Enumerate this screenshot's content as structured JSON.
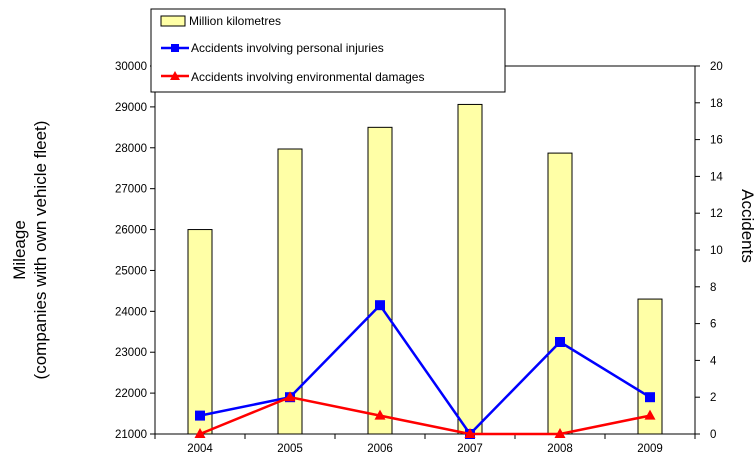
{
  "chart_data": {
    "type": "bar",
    "categories": [
      "2004",
      "2005",
      "2006",
      "2007",
      "2008",
      "2009"
    ],
    "y_left": {
      "ticks": [
        "21000",
        "22000",
        "23000",
        "24000",
        "25000",
        "26000",
        "27000",
        "28000",
        "29000",
        "30000"
      ],
      "range": [
        21000,
        30000
      ]
    },
    "y_right": {
      "ticks": [
        "0",
        "2",
        "4",
        "6",
        "8",
        "10",
        "12",
        "14",
        "16",
        "18",
        "20"
      ],
      "range": [
        0,
        20
      ]
    },
    "series": [
      {
        "name": "Million kilometres",
        "type": "bar",
        "axis": "left",
        "color": "#FFFFA6",
        "values": [
          26000,
          27970,
          28500,
          29060,
          27870,
          24300
        ]
      },
      {
        "name": "Accidents involving personal injuries",
        "type": "line",
        "axis": "right",
        "color": "#0000FF",
        "marker": "square",
        "values": [
          1,
          2,
          7,
          0,
          5,
          2
        ]
      },
      {
        "name": "Accidents involving environmental damages",
        "type": "line",
        "axis": "right",
        "color": "#FF0000",
        "marker": "triangle",
        "values": [
          0,
          2,
          1,
          0,
          0,
          1
        ]
      }
    ],
    "ylabel_left": [
      "Mileage",
      "(companies with own vehicle fleet)"
    ],
    "ylabel_right": "Accidents",
    "legend_position": "top-center",
    "grid": false
  }
}
